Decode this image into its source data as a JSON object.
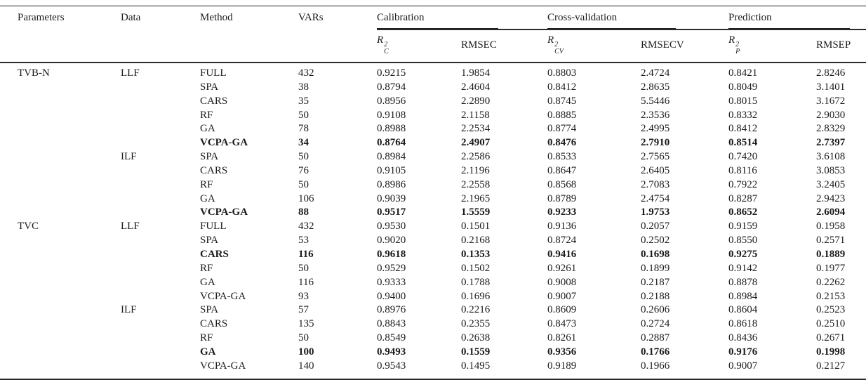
{
  "table": {
    "headers": [
      "Parameters",
      "Data",
      "Method",
      "VARs"
    ],
    "groups": [
      {
        "label": "Calibration",
        "r2": {
          "base": "R",
          "sup": "2",
          "sub": "C"
        },
        "rmse": "RMSEC"
      },
      {
        "label": "Cross-validation",
        "r2": {
          "base": "R",
          "sup": "2",
          "sub": "CV"
        },
        "rmse": "RMSECV"
      },
      {
        "label": "Prediction",
        "r2": {
          "base": "R",
          "sup": "2",
          "sub": "P"
        },
        "rmse": "RMSEP"
      }
    ],
    "rows": [
      {
        "bold": false,
        "cells": [
          "TVB-N",
          "LLF",
          "FULL",
          "432",
          "0.9215",
          "1.9854",
          "0.8803",
          "2.4724",
          "0.8421",
          "2.8246"
        ]
      },
      {
        "bold": false,
        "cells": [
          "",
          "",
          "SPA",
          "38",
          "0.8794",
          "2.4604",
          "0.8412",
          "2.8635",
          "0.8049",
          "3.1401"
        ]
      },
      {
        "bold": false,
        "cells": [
          "",
          "",
          "CARS",
          "35",
          "0.8956",
          "2.2890",
          "0.8745",
          "5.5446",
          "0.8015",
          "3.1672"
        ]
      },
      {
        "bold": false,
        "cells": [
          "",
          "",
          "RF",
          "50",
          "0.9108",
          "2.1158",
          "0.8885",
          "2.3536",
          "0.8332",
          "2.9030"
        ]
      },
      {
        "bold": false,
        "cells": [
          "",
          "",
          "GA",
          "78",
          "0.8988",
          "2.2534",
          "0.8774",
          "2.4995",
          "0.8412",
          "2.8329"
        ]
      },
      {
        "bold": true,
        "cells": [
          "",
          "",
          "VCPA-GA",
          "34",
          "0.8764",
          "2.4907",
          "0.8476",
          "2.7910",
          "0.8514",
          "2.7397"
        ]
      },
      {
        "bold": false,
        "cells": [
          "",
          "ILF",
          "SPA",
          "50",
          "0.8984",
          "2.2586",
          "0.8533",
          "2.7565",
          "0.7420",
          "3.6108"
        ]
      },
      {
        "bold": false,
        "cells": [
          "",
          "",
          "CARS",
          "76",
          "0.9105",
          "2.1196",
          "0.8647",
          "2.6405",
          "0.8116",
          "3.0853"
        ]
      },
      {
        "bold": false,
        "cells": [
          "",
          "",
          "RF",
          "50",
          "0.8986",
          "2.2558",
          "0.8568",
          "2.7083",
          "0.7922",
          "3.2405"
        ]
      },
      {
        "bold": false,
        "cells": [
          "",
          "",
          "GA",
          "106",
          "0.9039",
          "2.1965",
          "0.8789",
          "2.4754",
          "0.8287",
          "2.9423"
        ]
      },
      {
        "bold": true,
        "cells": [
          "",
          "",
          "VCPA-GA",
          "88",
          "0.9517",
          "1.5559",
          "0.9233",
          "1.9753",
          "0.8652",
          "2.6094"
        ]
      },
      {
        "bold": false,
        "cells": [
          "TVC",
          "LLF",
          "FULL",
          "432",
          "0.9530",
          "0.1501",
          "0.9136",
          "0.2057",
          "0.9159",
          "0.1958"
        ]
      },
      {
        "bold": false,
        "cells": [
          "",
          "",
          "SPA",
          "53",
          "0.9020",
          "0.2168",
          "0.8724",
          "0.2502",
          "0.8550",
          "0.2571"
        ]
      },
      {
        "bold": true,
        "cells": [
          "",
          "",
          "CARS",
          "116",
          "0.9618",
          "0.1353",
          "0.9416",
          "0.1698",
          "0.9275",
          "0.1889"
        ]
      },
      {
        "bold": false,
        "cells": [
          "",
          "",
          "RF",
          "50",
          "0.9529",
          "0.1502",
          "0.9261",
          "0.1899",
          "0.9142",
          "0.1977"
        ]
      },
      {
        "bold": false,
        "cells": [
          "",
          "",
          "GA",
          "116",
          "0.9333",
          "0.1788",
          "0.9008",
          "0.2187",
          "0.8878",
          "0.2262"
        ]
      },
      {
        "bold": false,
        "cells": [
          "",
          "",
          "VCPA-GA",
          "93",
          "0.9400",
          "0.1696",
          "0.9007",
          "0.2188",
          "0.8984",
          "0.2153"
        ]
      },
      {
        "bold": false,
        "cells": [
          "",
          "ILF",
          "SPA",
          "57",
          "0.8976",
          "0.2216",
          "0.8609",
          "0.2606",
          "0.8604",
          "0.2523"
        ]
      },
      {
        "bold": false,
        "cells": [
          "",
          "",
          "CARS",
          "135",
          "0.8843",
          "0.2355",
          "0.8473",
          "0.2724",
          "0.8618",
          "0.2510"
        ]
      },
      {
        "bold": false,
        "cells": [
          "",
          "",
          "RF",
          "50",
          "0.8549",
          "0.2638",
          "0.8261",
          "0.2887",
          "0.8436",
          "0.2671"
        ]
      },
      {
        "bold": true,
        "cells": [
          "",
          "",
          "GA",
          "100",
          "0.9493",
          "0.1559",
          "0.9356",
          "0.1766",
          "0.9176",
          "0.1998"
        ]
      },
      {
        "bold": false,
        "cells": [
          "",
          "",
          "VCPA-GA",
          "140",
          "0.9543",
          "0.1495",
          "0.9189",
          "0.1966",
          "0.9007",
          "0.2127"
        ]
      }
    ]
  }
}
